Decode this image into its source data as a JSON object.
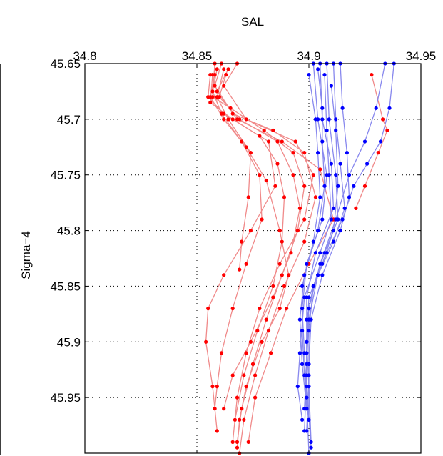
{
  "chart_data": {
    "type": "line",
    "title": "",
    "xlabel": "SAL",
    "ylabel": "Sigma−4",
    "xlim": [
      34.8,
      34.95
    ],
    "ylim": [
      45.65,
      46.0
    ],
    "y_reversed": true,
    "x_axis_position": "top",
    "grid": true,
    "x_ticks": [
      34.8,
      34.85,
      34.9,
      34.95
    ],
    "x_tick_labels": [
      "34.8",
      "34.85",
      "34.9",
      "34.95"
    ],
    "y_ticks": [
      45.65,
      45.7,
      45.75,
      45.8,
      45.85,
      45.9,
      45.95
    ],
    "y_tick_labels": [
      "45.65",
      "45.7",
      "45.75",
      "45.8",
      "45.85",
      "45.9",
      "45.95"
    ],
    "colors": {
      "red_marker": "#ff0000",
      "red_line": "#f08a8a",
      "blue_marker": "#0000ff",
      "blue_line": "#8888ee"
    },
    "series": [
      {
        "group": "red",
        "points": [
          [
            34.858,
            45.65
          ],
          [
            34.857,
            45.68
          ],
          [
            34.865,
            45.69
          ],
          [
            34.88,
            45.71
          ],
          [
            34.893,
            45.73
          ],
          [
            34.898,
            45.76
          ],
          [
            34.895,
            45.8
          ],
          [
            34.888,
            45.84
          ],
          [
            34.881,
            45.88
          ],
          [
            34.875,
            45.92
          ],
          [
            34.87,
            45.96
          ],
          [
            34.868,
            45.99
          ]
        ]
      },
      {
        "group": "red",
        "points": [
          [
            34.861,
            45.65
          ],
          [
            34.858,
            45.67
          ],
          [
            34.866,
            45.695
          ],
          [
            34.884,
            45.71
          ],
          [
            34.898,
            45.73
          ],
          [
            34.903,
            45.77
          ],
          [
            34.898,
            45.81
          ],
          [
            34.889,
            45.85
          ],
          [
            34.882,
            45.89
          ],
          [
            34.876,
            45.93
          ],
          [
            34.871,
            45.97
          ],
          [
            34.869,
            46.0
          ]
        ]
      },
      {
        "group": "red",
        "points": [
          [
            34.864,
            45.655
          ],
          [
            34.859,
            45.675
          ],
          [
            34.868,
            45.7
          ],
          [
            34.888,
            45.72
          ],
          [
            34.905,
            45.745
          ],
          [
            34.911,
            45.79
          ],
          [
            34.9,
            45.83
          ],
          [
            34.89,
            45.87
          ],
          [
            34.883,
            45.91
          ],
          [
            34.876,
            45.95
          ],
          [
            34.873,
            45.99
          ]
        ]
      },
      {
        "group": "red",
        "points": [
          [
            34.856,
            45.66
          ],
          [
            34.855,
            45.68
          ],
          [
            34.862,
            45.695
          ],
          [
            34.878,
            45.715
          ],
          [
            34.886,
            45.74
          ],
          [
            34.889,
            45.77
          ],
          [
            34.888,
            45.81
          ],
          [
            34.884,
            45.85
          ],
          [
            34.877,
            45.89
          ],
          [
            34.871,
            45.93
          ],
          [
            34.867,
            45.97
          ]
        ]
      },
      {
        "group": "red",
        "points": [
          [
            34.868,
            45.65
          ],
          [
            34.862,
            45.67
          ],
          [
            34.872,
            45.7
          ],
          [
            34.894,
            45.72
          ],
          [
            34.902,
            45.75
          ],
          [
            34.898,
            45.79
          ],
          [
            34.887,
            45.83
          ],
          [
            34.878,
            45.87
          ],
          [
            34.872,
            45.91
          ],
          [
            34.868,
            45.95
          ],
          [
            34.866,
            45.99
          ]
        ]
      },
      {
        "group": "red",
        "points": [
          [
            34.862,
            45.655
          ],
          [
            34.859,
            45.68
          ],
          [
            34.864,
            45.7
          ],
          [
            34.874,
            45.73
          ],
          [
            34.873,
            45.77
          ],
          [
            34.87,
            45.81
          ],
          [
            34.869,
            45.835
          ]
        ]
      },
      {
        "group": "red",
        "points": [
          [
            34.857,
            45.66
          ],
          [
            34.856,
            45.685
          ],
          [
            34.866,
            45.7
          ],
          [
            34.882,
            45.72
          ],
          [
            34.885,
            45.76
          ],
          [
            34.874,
            45.8
          ],
          [
            34.862,
            45.84
          ],
          [
            34.855,
            45.87
          ],
          [
            34.854,
            45.9
          ],
          [
            34.857,
            45.94
          ],
          [
            34.859,
            45.98
          ]
        ]
      },
      {
        "group": "red",
        "points": [
          [
            34.859,
            45.655
          ],
          [
            34.857,
            45.675
          ],
          [
            34.861,
            45.695
          ],
          [
            34.87,
            45.72
          ],
          [
            34.878,
            45.75
          ],
          [
            34.879,
            45.79
          ],
          [
            34.872,
            45.83
          ],
          [
            34.866,
            45.87
          ],
          [
            34.861,
            45.91
          ],
          [
            34.859,
            45.94
          ],
          [
            34.858,
            45.96
          ]
        ]
      },
      {
        "group": "red",
        "points": [
          [
            34.863,
            45.66
          ],
          [
            34.86,
            45.68
          ],
          [
            34.869,
            45.7
          ],
          [
            34.886,
            45.72
          ],
          [
            34.893,
            45.75
          ],
          [
            34.896,
            45.78
          ],
          [
            34.892,
            45.82
          ],
          [
            34.884,
            45.86
          ],
          [
            34.874,
            45.9
          ],
          [
            34.866,
            45.93
          ],
          [
            34.862,
            45.96
          ]
        ]
      },
      {
        "group": "red",
        "points": [
          [
            34.858,
            45.66
          ],
          [
            34.856,
            45.68
          ],
          [
            34.862,
            45.7
          ],
          [
            34.872,
            45.725
          ],
          [
            34.881,
            45.755
          ],
          [
            34.887,
            45.8
          ],
          [
            34.891,
            45.84
          ],
          [
            34.887,
            45.87
          ],
          [
            34.879,
            45.9
          ],
          [
            34.872,
            45.94
          ],
          [
            34.869,
            45.97
          ],
          [
            34.868,
            45.995
          ]
        ]
      },
      {
        "group": "red",
        "points": [
          [
            34.928,
            45.66
          ],
          [
            34.933,
            45.7
          ],
          [
            34.935,
            45.71
          ],
          [
            34.931,
            45.73
          ],
          [
            34.925,
            45.76
          ],
          [
            34.921,
            45.78
          ]
        ]
      },
      {
        "group": "blue",
        "points": [
          [
            34.902,
            45.65
          ],
          [
            34.904,
            45.7
          ],
          [
            34.908,
            45.75
          ],
          [
            34.906,
            45.79
          ],
          [
            34.899,
            45.83
          ],
          [
            34.897,
            45.87
          ],
          [
            34.898,
            45.91
          ],
          [
            34.899,
            45.95
          ],
          [
            34.9,
            46.0
          ]
        ]
      },
      {
        "group": "blue",
        "points": [
          [
            34.905,
            45.65
          ],
          [
            34.906,
            45.7
          ],
          [
            34.91,
            45.74
          ],
          [
            34.911,
            45.78
          ],
          [
            34.903,
            45.82
          ],
          [
            34.899,
            45.86
          ],
          [
            34.899,
            45.9
          ],
          [
            34.9,
            45.94
          ],
          [
            34.901,
            45.99
          ]
        ]
      },
      {
        "group": "blue",
        "points": [
          [
            34.908,
            45.65
          ],
          [
            34.909,
            45.7
          ],
          [
            34.912,
            45.75
          ],
          [
            34.913,
            45.79
          ],
          [
            34.907,
            45.82
          ],
          [
            34.902,
            45.85
          ],
          [
            34.9,
            45.89
          ],
          [
            34.9,
            45.93
          ],
          [
            34.899,
            45.98
          ]
        ]
      },
      {
        "group": "blue",
        "points": [
          [
            34.911,
            45.65
          ],
          [
            34.912,
            45.7
          ],
          [
            34.914,
            45.74
          ],
          [
            34.916,
            45.78
          ],
          [
            34.911,
            45.81
          ],
          [
            34.904,
            45.84
          ],
          [
            34.9,
            45.88
          ],
          [
            34.899,
            45.92
          ],
          [
            34.898,
            45.96
          ]
        ]
      },
      {
        "group": "blue",
        "points": [
          [
            34.914,
            45.65
          ],
          [
            34.915,
            45.69
          ],
          [
            34.917,
            45.73
          ],
          [
            34.918,
            45.77
          ],
          [
            34.914,
            45.8
          ],
          [
            34.906,
            45.84
          ],
          [
            34.901,
            45.88
          ],
          [
            34.9,
            45.92
          ],
          [
            34.9,
            45.97
          ]
        ]
      },
      {
        "group": "blue",
        "points": [
          [
            34.904,
            45.655
          ],
          [
            34.906,
            45.69
          ],
          [
            34.906,
            45.72
          ],
          [
            34.907,
            45.76
          ],
          [
            34.904,
            45.8
          ],
          [
            34.898,
            45.84
          ],
          [
            34.896,
            45.88
          ],
          [
            34.897,
            45.92
          ],
          [
            34.899,
            45.96
          ]
        ]
      },
      {
        "group": "blue",
        "points": [
          [
            34.9,
            45.66
          ],
          [
            34.903,
            45.7
          ],
          [
            34.904,
            45.73
          ],
          [
            34.905,
            45.77
          ],
          [
            34.902,
            45.81
          ],
          [
            34.897,
            45.85
          ],
          [
            34.897,
            45.89
          ],
          [
            34.898,
            45.93
          ],
          [
            34.9,
            45.97
          ]
        ]
      },
      {
        "group": "blue",
        "points": [
          [
            34.938,
            45.65
          ],
          [
            34.936,
            45.69
          ],
          [
            34.932,
            45.72
          ],
          [
            34.926,
            45.74
          ],
          [
            34.92,
            45.76
          ],
          [
            34.915,
            45.79
          ],
          [
            34.908,
            45.82
          ],
          [
            34.902,
            45.85
          ],
          [
            34.899,
            45.88
          ],
          [
            34.899,
            45.93
          ],
          [
            34.898,
            45.98
          ]
        ]
      },
      {
        "group": "blue",
        "points": [
          [
            34.934,
            45.65
          ],
          [
            34.93,
            45.69
          ],
          [
            34.925,
            45.72
          ],
          [
            34.918,
            45.75
          ],
          [
            34.912,
            45.79
          ],
          [
            34.905,
            45.83
          ],
          [
            34.9,
            45.87
          ],
          [
            34.899,
            45.91
          ],
          [
            34.899,
            45.96
          ]
        ]
      },
      {
        "group": "blue",
        "points": [
          [
            34.91,
            45.67
          ],
          [
            34.912,
            45.71
          ],
          [
            34.913,
            45.76
          ],
          [
            34.911,
            45.8
          ],
          [
            34.906,
            45.83
          ],
          [
            34.9,
            45.86
          ],
          [
            34.899,
            45.9
          ],
          [
            34.899,
            45.94
          ],
          [
            34.901,
            45.995
          ]
        ]
      },
      {
        "group": "blue",
        "points": [
          [
            34.907,
            45.66
          ],
          [
            34.908,
            45.71
          ],
          [
            34.909,
            45.75
          ],
          [
            34.91,
            45.79
          ],
          [
            34.905,
            45.82
          ],
          [
            34.898,
            45.86
          ],
          [
            34.896,
            45.91
          ],
          [
            34.895,
            45.94
          ],
          [
            34.897,
            45.97
          ]
        ]
      }
    ]
  }
}
